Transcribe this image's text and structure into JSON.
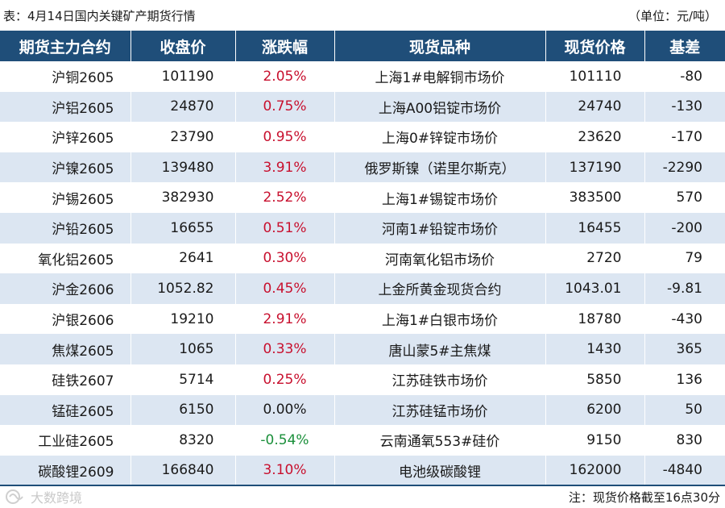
{
  "caption": {
    "title": "表：4月14日国内关键矿产期货行情",
    "unit": "（单位：元/吨）"
  },
  "table": {
    "headers": [
      "期货主力合约",
      "收盘价",
      "涨跌幅",
      "现货品种",
      "现货价格",
      "基差"
    ],
    "rows": [
      {
        "contract": "沪铜2605",
        "close": "101190",
        "change": "2.05%",
        "trend": "up",
        "spot": "上海1#电解铜市场价",
        "spot_price": "101110",
        "basis": "-80"
      },
      {
        "contract": "沪铝2605",
        "close": "24870",
        "change": "0.75%",
        "trend": "up",
        "spot": "上海A00铝锭市场价",
        "spot_price": "24740",
        "basis": "-130"
      },
      {
        "contract": "沪锌2605",
        "close": "23790",
        "change": "0.95%",
        "trend": "up",
        "spot": "上海0#锌锭市场价",
        "spot_price": "23620",
        "basis": "-170"
      },
      {
        "contract": "沪镍2605",
        "close": "139480",
        "change": "3.91%",
        "trend": "up",
        "spot": "俄罗斯镍（诺里尔斯克）",
        "spot_price": "137190",
        "basis": "-2290"
      },
      {
        "contract": "沪锡2605",
        "close": "382930",
        "change": "2.52%",
        "trend": "up",
        "spot": "上海1#锡锭市场价",
        "spot_price": "383500",
        "basis": "570"
      },
      {
        "contract": "沪铅2605",
        "close": "16655",
        "change": "0.51%",
        "trend": "up",
        "spot": "河南1#铅锭市场价",
        "spot_price": "16455",
        "basis": "-200"
      },
      {
        "contract": "氧化铝2605",
        "close": "2641",
        "change": "0.30%",
        "trend": "up",
        "spot": "河南氧化铝市场价",
        "spot_price": "2720",
        "basis": "79"
      },
      {
        "contract": "沪金2606",
        "close": "1052.82",
        "change": "0.45%",
        "trend": "up",
        "spot": "上金所黄金现货合约",
        "spot_price": "1043.01",
        "basis": "-9.81"
      },
      {
        "contract": "沪银2606",
        "close": "19210",
        "change": "2.91%",
        "trend": "up",
        "spot": "上海1#白银市场价",
        "spot_price": "18780",
        "basis": "-430"
      },
      {
        "contract": "焦煤2605",
        "close": "1065",
        "change": "0.33%",
        "trend": "up",
        "spot": "唐山蒙5#主焦煤",
        "spot_price": "1430",
        "basis": "365"
      },
      {
        "contract": "硅铁2607",
        "close": "5714",
        "change": "0.25%",
        "trend": "up",
        "spot": "江苏硅铁市场价",
        "spot_price": "5850",
        "basis": "136"
      },
      {
        "contract": "锰硅2605",
        "close": "6150",
        "change": "0.00%",
        "trend": "flat",
        "spot": "江苏硅锰市场价",
        "spot_price": "6200",
        "basis": "50"
      },
      {
        "contract": "工业硅2605",
        "close": "8320",
        "change": "-0.54%",
        "trend": "down",
        "spot": "云南通氧553#硅价",
        "spot_price": "9150",
        "basis": "830"
      },
      {
        "contract": "碳酸锂2609",
        "close": "166840",
        "change": "3.10%",
        "trend": "up",
        "spot": "电池级碳酸锂",
        "spot_price": "162000",
        "basis": "-4840"
      }
    ]
  },
  "footer": {
    "watermark": "大数跨境",
    "watermark_icon": "watermark-logo-icon",
    "note": "注：现货价格截至16点30分"
  },
  "colors": {
    "header_bg": "#1f4e79",
    "stripe": "#dce6f2",
    "up": "#c8102e",
    "down": "#1a8f3a"
  }
}
